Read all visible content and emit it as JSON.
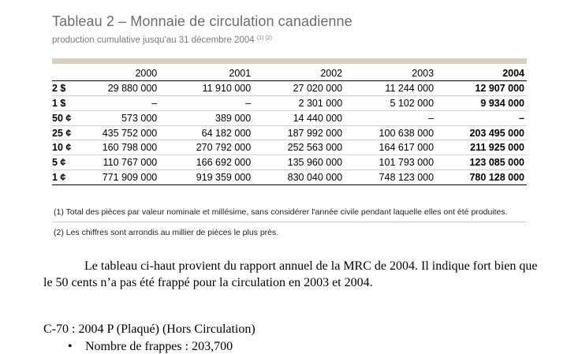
{
  "table": {
    "title": "Tableau 2 – Monnaie de circulation canadienne",
    "subtitle": "production cumulative jusqu'au 31 décembre 2004",
    "subtitle_refs": "(1) (2)",
    "years": [
      "2000",
      "2001",
      "2002",
      "2003",
      "2004"
    ],
    "rows": [
      {
        "denom": "2 $",
        "values": [
          "29 880 000",
          "11 910 000",
          "27 020 000",
          "11 244 000",
          "12 907 000"
        ]
      },
      {
        "denom": "1 $",
        "values": [
          "–",
          "–",
          "2 301 000",
          "5 102 000",
          "9 934 000"
        ]
      },
      {
        "denom": "50 ¢",
        "values": [
          "573 000",
          "389 000",
          "14 440 000",
          "–",
          "–"
        ]
      },
      {
        "denom": "25 ¢",
        "values": [
          "435 752 000",
          "64 182 000",
          "187 992 000",
          "100 638 000",
          "203 495 000"
        ]
      },
      {
        "denom": "10 ¢",
        "values": [
          "160 798 000",
          "270 792 000",
          "252 563 000",
          "164 617 000",
          "211 925 000"
        ]
      },
      {
        "denom": "5 ¢",
        "values": [
          "110 767 000",
          "166 692 000",
          "135 960 000",
          "101 793 000",
          "123 085 000"
        ]
      },
      {
        "denom": "1 ¢",
        "values": [
          "771 909 000",
          "919 359 000",
          "830 040 000",
          "748 123 000",
          "780 128 000"
        ]
      }
    ],
    "notes": [
      "(1) Total des pièces par valeur nominale et millésime, sans considérer l'année civile pendant laquelle elles ont été produites.",
      "(2) Les chiffres sont arrondis au millier de pièces le plus près."
    ]
  },
  "prose": {
    "paragraph": "Le tableau ci-haut provient du rapport annuel de la MRC de 2004. Il indique fort bien que le 50 cents n’a pas été frappé pour la circulation en 2003 et 2004.",
    "code_line": "C-70 : 2004 P (Plaqué) (Hors Circulation)",
    "bullet_symbol": "•",
    "bullet": "Nombre de frappes : 203,700"
  }
}
